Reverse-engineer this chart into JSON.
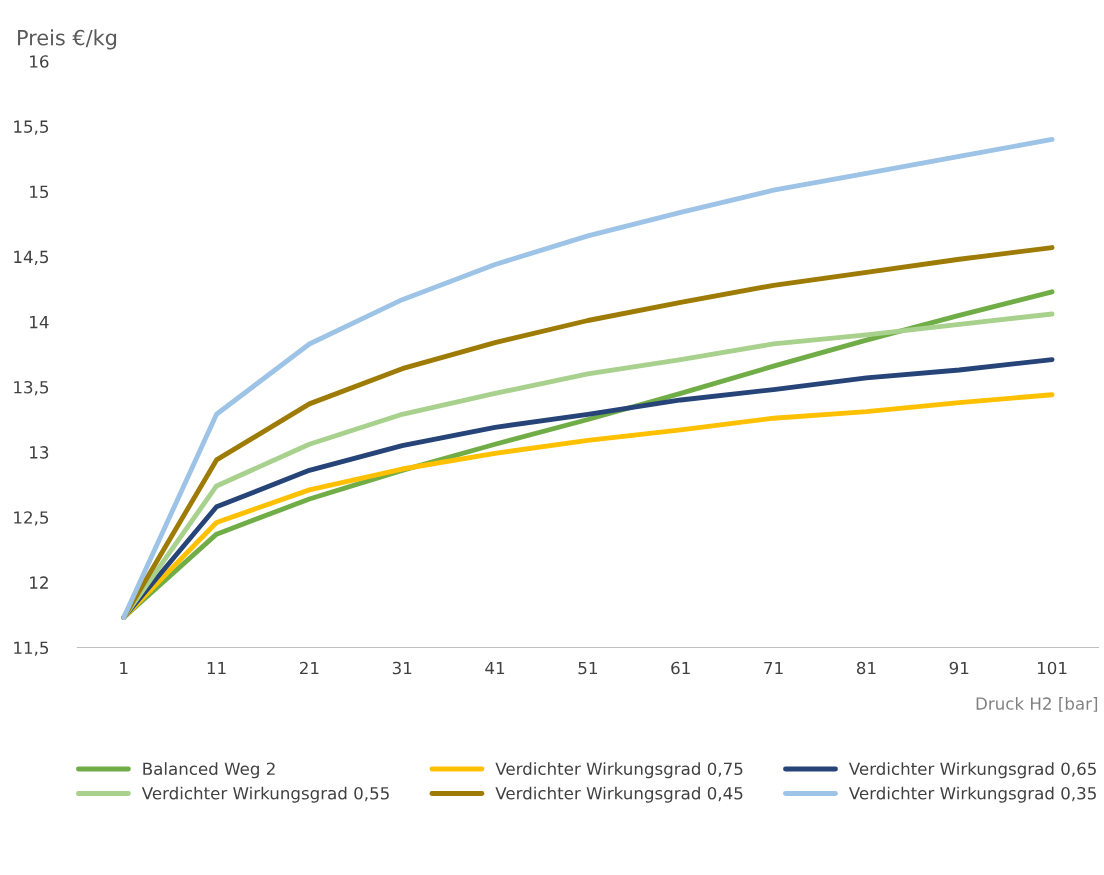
{
  "chart_data": {
    "type": "line",
    "ylabel": "Preis €/kg",
    "xlabel": "Druck H2 [bar]",
    "categories": [
      "1",
      "11",
      "21",
      "31",
      "41",
      "51",
      "61",
      "71",
      "81",
      "91",
      "101"
    ],
    "ylim": [
      11.5,
      16
    ],
    "yticks": [
      {
        "value": 11.5,
        "label": "11,5"
      },
      12,
      {
        "value": 12.5,
        "label": "12,5"
      },
      13,
      {
        "value": 13.5,
        "label": "13,5"
      },
      14,
      {
        "value": 14.5,
        "label": "14,5"
      },
      15,
      {
        "value": 15.5,
        "label": "15,5"
      },
      16
    ],
    "grid": false,
    "legend": "bottom",
    "marker": "none",
    "line_style": "solid",
    "series": [
      {
        "name": "Balanced Weg 2",
        "color": "#70ad47",
        "values": [
          11.73,
          12.37,
          12.64,
          12.86,
          13.06,
          13.25,
          13.45,
          13.66,
          13.86,
          14.05,
          14.23
        ]
      },
      {
        "name": "Verdichter Wirkungsgrad 0,75",
        "color": "#ffc000",
        "values": [
          11.73,
          12.46,
          12.71,
          12.87,
          12.99,
          13.09,
          13.17,
          13.26,
          13.31,
          13.38,
          13.44
        ]
      },
      {
        "name": "Verdichter Wirkungsgrad 0,65",
        "color": "#264478",
        "values": [
          11.73,
          12.58,
          12.86,
          13.05,
          13.19,
          13.29,
          13.4,
          13.48,
          13.57,
          13.63,
          13.71
        ]
      },
      {
        "name": "Verdichter Wirkungsgrad 0,55",
        "color": "#a9d18e",
        "values": [
          11.73,
          12.74,
          13.06,
          13.29,
          13.45,
          13.6,
          13.71,
          13.83,
          13.9,
          13.98,
          14.06
        ]
      },
      {
        "name": "Verdichter Wirkungsgrad 0,45",
        "color": "#9e7b05",
        "values": [
          11.73,
          12.94,
          13.37,
          13.64,
          13.84,
          14.01,
          14.15,
          14.28,
          14.38,
          14.48,
          14.57
        ]
      },
      {
        "name": "Verdichter Wirkungsgrad 0,35",
        "color": "#9dc3e6",
        "values": [
          11.73,
          13.29,
          13.83,
          14.17,
          14.44,
          14.66,
          14.84,
          15.01,
          15.14,
          15.27,
          15.4
        ]
      }
    ]
  }
}
